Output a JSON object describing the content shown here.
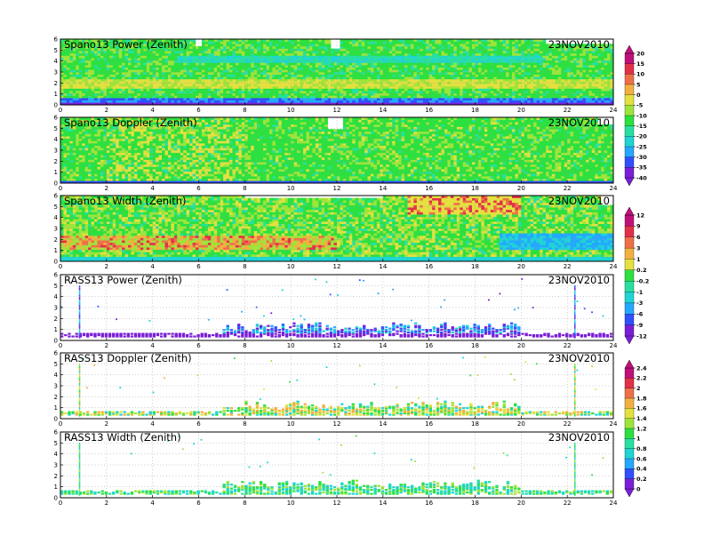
{
  "colors": {
    "scale": [
      "#7a1fd6",
      "#3050ff",
      "#25a8ff",
      "#1ed4d4",
      "#27e0a0",
      "#2ce040",
      "#9ee43a",
      "#e4e040",
      "#f2b040",
      "#ee7048",
      "#e23048",
      "#c0107a"
    ],
    "background": "#ffffff",
    "no_data": "#ffffff"
  },
  "colorbars": [
    {
      "id": "power",
      "labels": [
        "20",
        "15",
        "10",
        "5",
        "0",
        "-5",
        "-10",
        "-15",
        "-20",
        "-25",
        "-30",
        "-35",
        "-40"
      ]
    },
    {
      "id": "width",
      "labels": [
        "12",
        "9",
        "6",
        "3",
        "1",
        "0.2",
        "-0.2",
        "-1",
        "-3",
        "-6",
        "-9",
        "-12"
      ]
    },
    {
      "id": "doppler",
      "labels": [
        "2.4",
        "2.2",
        "2",
        "1.8",
        "1.6",
        "1.4",
        "1.2",
        "1",
        "0.8",
        "0.6",
        "0.4",
        "0.2",
        "0"
      ]
    }
  ],
  "chart_data": [
    {
      "type": "heatmap",
      "title": "Spano13 Power (Zenith)",
      "date": "23NOV2010",
      "x_ticks": [
        "0",
        "2",
        "4",
        "6",
        "8",
        "10",
        "12",
        "14",
        "16",
        "18",
        "20",
        "22",
        "24"
      ],
      "y_ticks": [
        "0",
        "1",
        "2",
        "3",
        "4",
        "5",
        "6"
      ],
      "xlim": [
        0,
        24
      ],
      "ylim": [
        0,
        6
      ],
      "grid": true
    },
    {
      "type": "heatmap",
      "title": "Spano13 Doppler (Zenith)",
      "date": "23NOV2010",
      "x_ticks": [
        "0",
        "2",
        "4",
        "6",
        "8",
        "10",
        "12",
        "14",
        "16",
        "18",
        "20",
        "22",
        "24"
      ],
      "y_ticks": [
        "0",
        "1",
        "2",
        "3",
        "4",
        "5",
        "6"
      ],
      "xlim": [
        0,
        24
      ],
      "ylim": [
        0,
        6
      ],
      "grid": true
    },
    {
      "type": "heatmap",
      "title": "Spano13 Width (Zenith)",
      "date": "23NOV2010",
      "x_ticks": [
        "0",
        "2",
        "4",
        "6",
        "8",
        "10",
        "12",
        "14",
        "16",
        "18",
        "20",
        "22",
        "24"
      ],
      "y_ticks": [
        "0",
        "1",
        "2",
        "3",
        "4",
        "5",
        "6"
      ],
      "xlim": [
        0,
        24
      ],
      "ylim": [
        0,
        6
      ],
      "grid": true
    },
    {
      "type": "heatmap",
      "title": "RASS13 Power (Zenith)",
      "date": "23NOV2010",
      "x_ticks": [
        "0",
        "2",
        "4",
        "6",
        "8",
        "10",
        "12",
        "14",
        "16",
        "18",
        "20",
        "22",
        "24"
      ],
      "y_ticks": [
        "0",
        "1",
        "2",
        "3",
        "4",
        "5",
        "6"
      ],
      "xlim": [
        0,
        24
      ],
      "ylim": [
        0,
        6
      ],
      "grid": true
    },
    {
      "type": "heatmap",
      "title": "RASS13 Doppler (Zenith)",
      "date": "23NOV2010",
      "x_ticks": [
        "0",
        "2",
        "4",
        "6",
        "8",
        "10",
        "12",
        "14",
        "16",
        "18",
        "20",
        "22",
        "24"
      ],
      "y_ticks": [
        "0",
        "1",
        "2",
        "3",
        "4",
        "5",
        "6"
      ],
      "xlim": [
        0,
        24
      ],
      "ylim": [
        0,
        6
      ],
      "grid": true
    },
    {
      "type": "heatmap",
      "title": "RASS13 Width (Zenith)",
      "date": "23NOV2010",
      "x_ticks": [
        "0",
        "2",
        "4",
        "6",
        "8",
        "10",
        "12",
        "14",
        "16",
        "18",
        "20",
        "22",
        "24"
      ],
      "y_ticks": [
        "0",
        "1",
        "2",
        "3",
        "4",
        "5",
        "6"
      ],
      "xlim": [
        0,
        24
      ],
      "ylim": [
        0,
        6
      ],
      "grid": true
    }
  ]
}
